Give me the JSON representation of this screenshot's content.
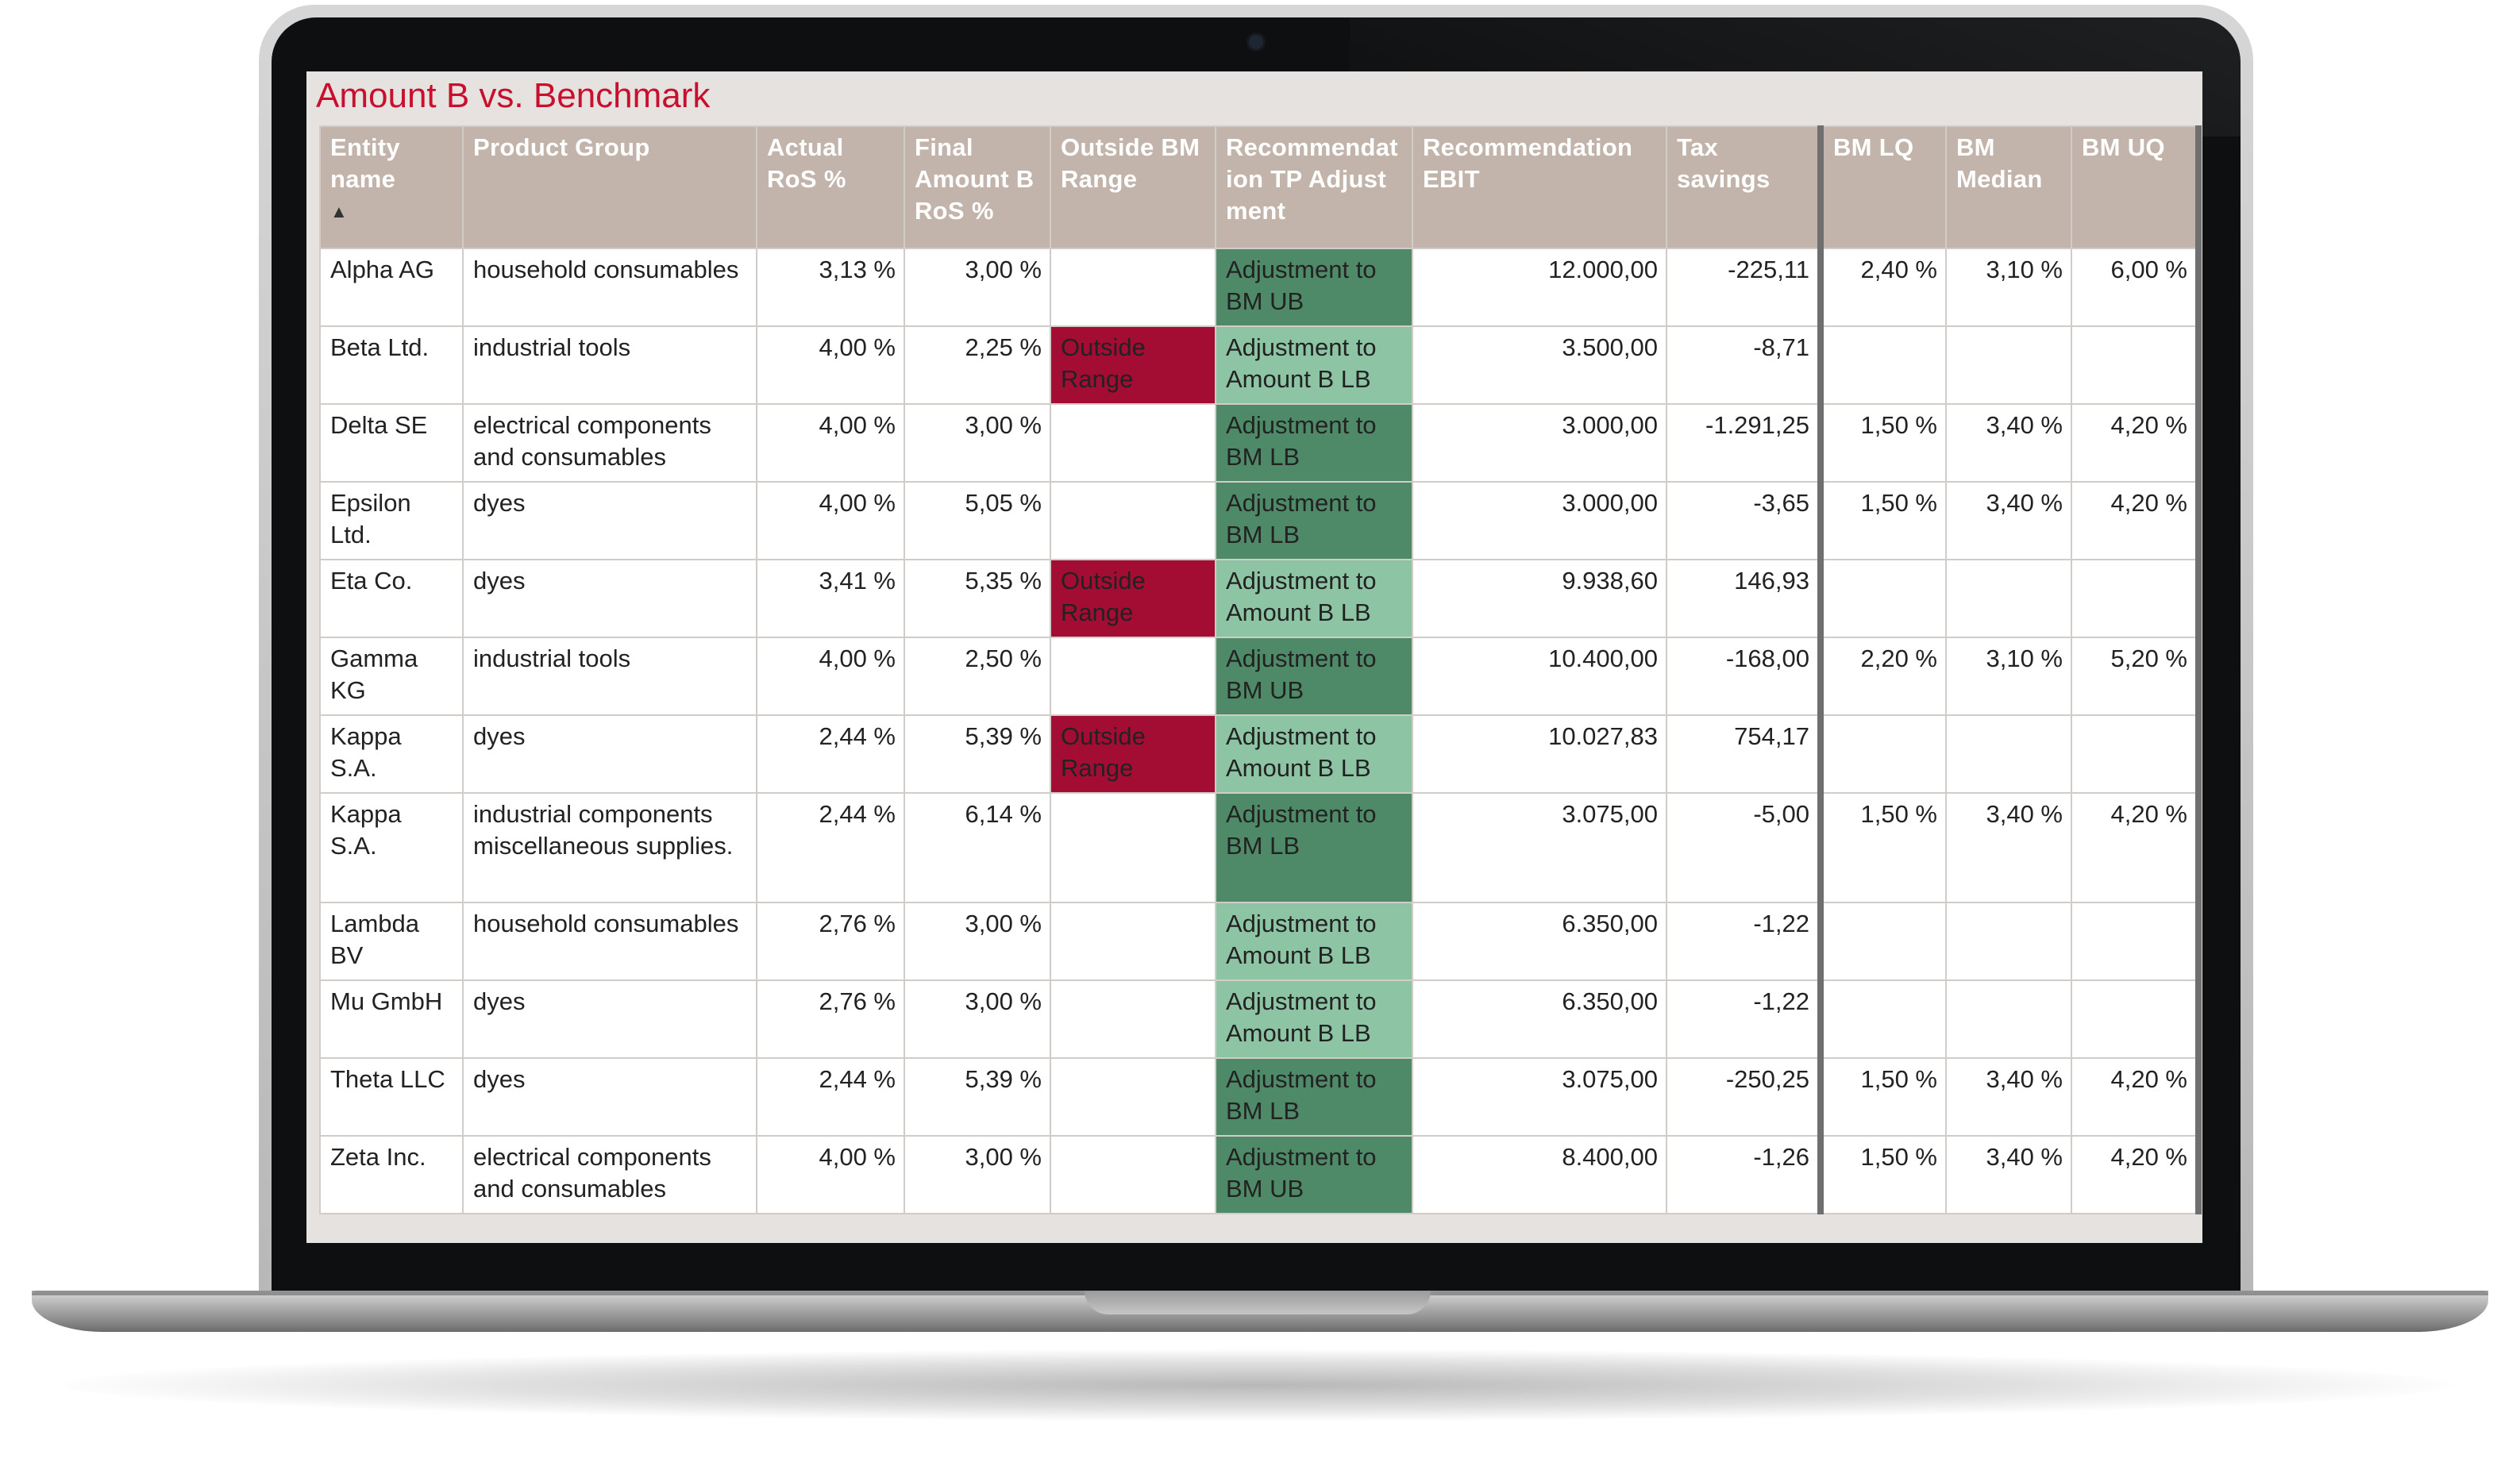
{
  "title": "Amount B vs. Benchmark",
  "columns": [
    "Entity name",
    "Product Group",
    "Actual RoS %",
    "Final Amount B RoS %",
    "Outside BM Range",
    "Recommendation TP Adjustment",
    "Recommendation EBIT",
    "Tax savings",
    "BM LQ",
    "BM Median",
    "BM UQ"
  ],
  "sort_icon": "sort-ascending-icon",
  "colors": {
    "title": "#c8102e",
    "header_bg": "#c2b4ab",
    "outside_range": "#a30c33",
    "adjustment_bm": "#4e8a68",
    "adjustment_amount_b": "#8cc4a4"
  },
  "rows": [
    {
      "entity": "Alpha AG",
      "product_group": "household consumables",
      "actual_ros": "3,13 %",
      "final_ros": "3,00 %",
      "outside": "",
      "recommendation": "Adjustment to BM UB",
      "ebit": "12.000,00",
      "tax_savings": "-225,11",
      "bm_lq": "2,40 %",
      "bm_median": "3,10 %",
      "bm_uq": "6,00 %"
    },
    {
      "entity": "Beta Ltd.",
      "product_group": "industrial tools",
      "actual_ros": "4,00 %",
      "final_ros": "2,25 %",
      "outside": "Outside Range",
      "recommendation": "Adjustment to Amount B LB",
      "ebit": "3.500,00",
      "tax_savings": "-8,71",
      "bm_lq": "",
      "bm_median": "",
      "bm_uq": ""
    },
    {
      "entity": "Delta SE",
      "product_group": "electrical components and consumables",
      "actual_ros": "4,00 %",
      "final_ros": "3,00 %",
      "outside": "",
      "recommendation": "Adjustment to BM LB",
      "ebit": "3.000,00",
      "tax_savings": "-1.291,25",
      "bm_lq": "1,50 %",
      "bm_median": "3,40 %",
      "bm_uq": "4,20 %"
    },
    {
      "entity": "Epsilon Ltd.",
      "product_group": "dyes",
      "actual_ros": "4,00 %",
      "final_ros": "5,05 %",
      "outside": "",
      "recommendation": "Adjustment to BM LB",
      "ebit": "3.000,00",
      "tax_savings": "-3,65",
      "bm_lq": "1,50 %",
      "bm_median": "3,40 %",
      "bm_uq": "4,20 %"
    },
    {
      "entity": "Eta Co.",
      "product_group": "dyes",
      "actual_ros": "3,41 %",
      "final_ros": "5,35 %",
      "outside": "Outside Range",
      "recommendation": "Adjustment to Amount B LB",
      "ebit": "9.938,60",
      "tax_savings": "146,93",
      "bm_lq": "",
      "bm_median": "",
      "bm_uq": ""
    },
    {
      "entity": "Gamma KG",
      "product_group": "industrial tools",
      "actual_ros": "4,00 %",
      "final_ros": "2,50 %",
      "outside": "",
      "recommendation": "Adjustment to BM UB",
      "ebit": "10.400,00",
      "tax_savings": "-168,00",
      "bm_lq": "2,20 %",
      "bm_median": "3,10 %",
      "bm_uq": "5,20 %"
    },
    {
      "entity": "Kappa S.A.",
      "product_group": "dyes",
      "actual_ros": "2,44 %",
      "final_ros": "5,39 %",
      "outside": "Outside Range",
      "recommendation": "Adjustment to Amount B LB",
      "ebit": "10.027,83",
      "tax_savings": "754,17",
      "bm_lq": "",
      "bm_median": "",
      "bm_uq": ""
    },
    {
      "entity": "Kappa S.A.",
      "product_group": "industrial components miscellaneous supplies.",
      "actual_ros": "2,44 %",
      "final_ros": "6,14 %",
      "outside": "",
      "recommendation": "Adjustment to BM LB",
      "ebit": "3.075,00",
      "tax_savings": "-5,00",
      "bm_lq": "1,50 %",
      "bm_median": "3,40 %",
      "bm_uq": "4,20 %"
    },
    {
      "entity": "Lambda BV",
      "product_group": "household consumables",
      "actual_ros": "2,76 %",
      "final_ros": "3,00 %",
      "outside": "",
      "recommendation": "Adjustment to Amount B LB",
      "ebit": "6.350,00",
      "tax_savings": "-1,22",
      "bm_lq": "",
      "bm_median": "",
      "bm_uq": ""
    },
    {
      "entity": "Mu GmbH",
      "product_group": "dyes",
      "actual_ros": "2,76 %",
      "final_ros": "3,00 %",
      "outside": "",
      "recommendation": "Adjustment to Amount B LB",
      "ebit": "6.350,00",
      "tax_savings": "-1,22",
      "bm_lq": "",
      "bm_median": "",
      "bm_uq": ""
    },
    {
      "entity": "Theta LLC",
      "product_group": "dyes",
      "actual_ros": "2,44 %",
      "final_ros": "5,39 %",
      "outside": "",
      "recommendation": "Adjustment to BM LB",
      "ebit": "3.075,00",
      "tax_savings": "-250,25",
      "bm_lq": "1,50 %",
      "bm_median": "3,40 %",
      "bm_uq": "4,20 %"
    },
    {
      "entity": "Zeta Inc.",
      "product_group": "electrical components and consumables",
      "actual_ros": "4,00 %",
      "final_ros": "3,00 %",
      "outside": "",
      "recommendation": "Adjustment to BM UB",
      "ebit": "8.400,00",
      "tax_savings": "-1,26",
      "bm_lq": "1,50 %",
      "bm_median": "3,40 %",
      "bm_uq": "4,20 %"
    }
  ]
}
